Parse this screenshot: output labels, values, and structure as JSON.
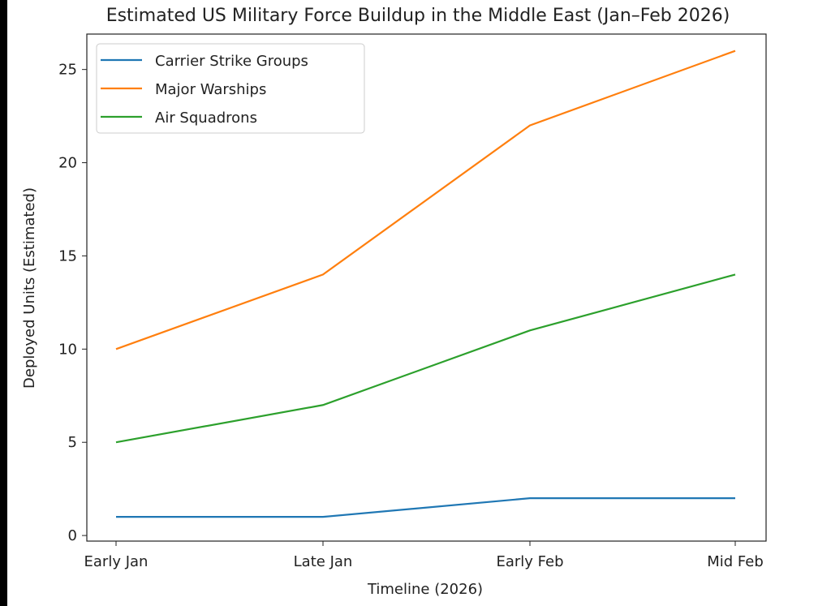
{
  "chart_data": {
    "type": "line",
    "title": "Estimated US Military Force Buildup in the Middle East (Jan–Feb 2026)",
    "xlabel": "Timeline (2026)",
    "ylabel": "Deployed Units (Estimated)",
    "categories": [
      "Early Jan",
      "Late Jan",
      "Early Feb",
      "Mid Feb"
    ],
    "ylim": [
      -0.3,
      26.9
    ],
    "yticks": [
      0,
      5,
      10,
      15,
      20,
      25
    ],
    "grid": false,
    "legend_position": "top-left",
    "series": [
      {
        "name": "Carrier Strike Groups",
        "values": [
          1,
          1,
          2,
          2
        ],
        "color": "#1f77b4"
      },
      {
        "name": "Major Warships",
        "values": [
          10,
          14,
          22,
          26
        ],
        "color": "#ff7f0e"
      },
      {
        "name": "Air Squadrons",
        "values": [
          5,
          7,
          11,
          14
        ],
        "color": "#2ca02c"
      }
    ]
  }
}
